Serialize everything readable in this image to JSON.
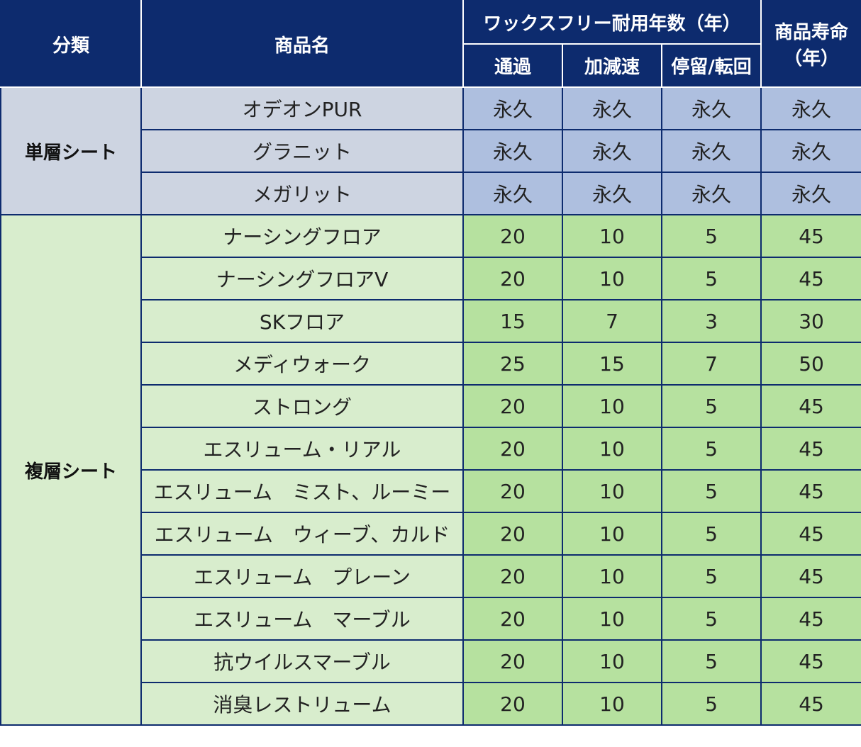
{
  "header": {
    "category": "分類",
    "product_name": "商品名",
    "wax_free_group": "ワックスフリー耐用年数（年）",
    "product_life": "商品寿命（年）",
    "sub_columns": [
      "通過",
      "加減速",
      "停留/転回"
    ]
  },
  "groups": [
    {
      "category": "単層シート",
      "rows": [
        {
          "name": "オデオンPUR",
          "values": [
            "永久",
            "永久",
            "永久",
            "永久"
          ]
        },
        {
          "name": "グラニット",
          "values": [
            "永久",
            "永久",
            "永久",
            "永久"
          ]
        },
        {
          "name": "メガリット",
          "values": [
            "永久",
            "永久",
            "永久",
            "永久"
          ]
        }
      ]
    },
    {
      "category": "複層シート",
      "rows": [
        {
          "name": "ナーシングフロア",
          "values": [
            "20",
            "10",
            "5",
            "45"
          ]
        },
        {
          "name": "ナーシングフロアV",
          "values": [
            "20",
            "10",
            "5",
            "45"
          ]
        },
        {
          "name": "SKフロア",
          "values": [
            "15",
            "7",
            "3",
            "30"
          ]
        },
        {
          "name": "メディウォーク",
          "values": [
            "25",
            "15",
            "7",
            "50"
          ]
        },
        {
          "name": "ストロング",
          "values": [
            "20",
            "10",
            "5",
            "45"
          ]
        },
        {
          "name": "エスリューム・リアル",
          "values": [
            "20",
            "10",
            "5",
            "45"
          ]
        },
        {
          "name": "エスリューム　ミスト、ルーミー",
          "values": [
            "20",
            "10",
            "5",
            "45"
          ]
        },
        {
          "name": "エスリューム　ウィーブ、カルド",
          "values": [
            "20",
            "10",
            "5",
            "45"
          ]
        },
        {
          "name": "エスリューム　プレーン",
          "values": [
            "20",
            "10",
            "5",
            "45"
          ]
        },
        {
          "name": "エスリューム　マーブル",
          "values": [
            "20",
            "10",
            "5",
            "45"
          ]
        },
        {
          "name": "抗ウイルスマーブル",
          "values": [
            "20",
            "10",
            "5",
            "45"
          ]
        },
        {
          "name": "消臭レストリューム",
          "values": [
            "20",
            "10",
            "5",
            "45"
          ]
        }
      ]
    }
  ],
  "colors": {
    "header_bg": "#0d2b6e",
    "single_label_bg": "#cdd4e1",
    "single_value_bg": "#aebfdf",
    "multi_label_bg": "#d8edcd",
    "multi_value_bg": "#b6e19f"
  }
}
